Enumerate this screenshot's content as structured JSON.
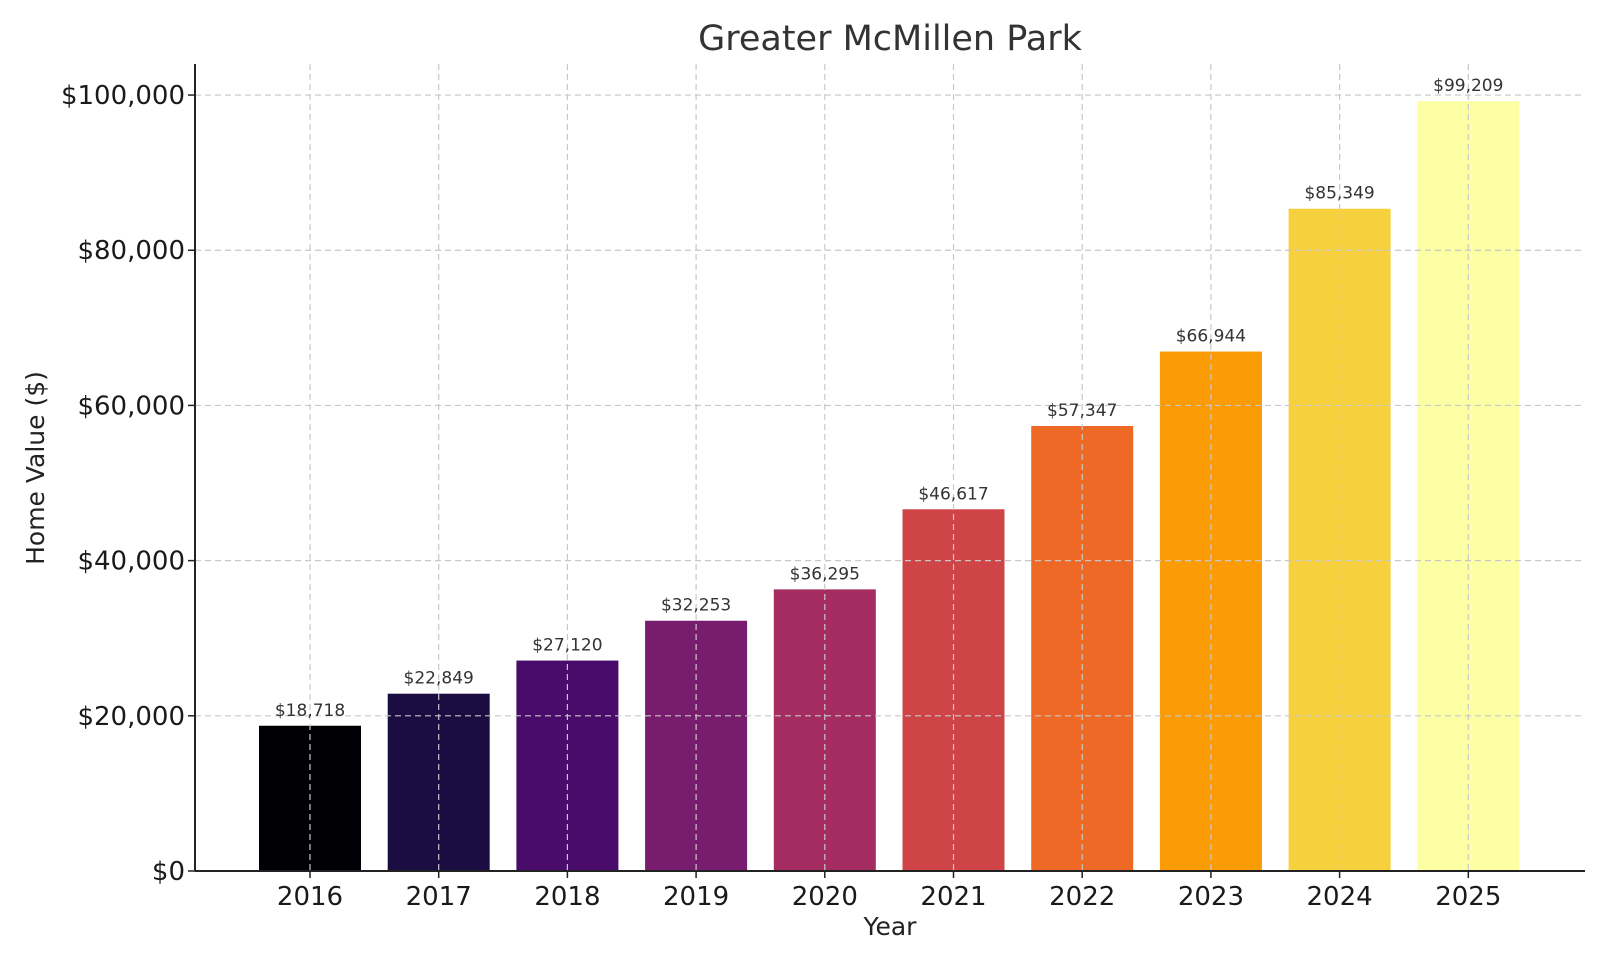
{
  "chart_data": {
    "type": "bar",
    "title": "Greater McMillen Park",
    "xlabel": "Year",
    "ylabel": "Home Value ($)",
    "categories": [
      "2016",
      "2017",
      "2018",
      "2019",
      "2020",
      "2021",
      "2022",
      "2023",
      "2024",
      "2025"
    ],
    "values": [
      18718,
      22849,
      27120,
      32253,
      36295,
      46617,
      57347,
      66944,
      85349,
      99209
    ],
    "value_labels": [
      "$18,718",
      "$22,849",
      "$27,120",
      "$32,253",
      "$36,295",
      "$46,617",
      "$57,347",
      "$66,944",
      "$85,349",
      "$99,209"
    ],
    "colors": [
      "#000004",
      "#1b0c41",
      "#4a0c6b",
      "#781c6d",
      "#a52c60",
      "#cf4446",
      "#ed6925",
      "#fb9b06",
      "#f7d13d",
      "#fcffa4"
    ],
    "ylim": [
      0,
      104000
    ],
    "yticks": [
      0,
      20000,
      40000,
      60000,
      80000,
      100000
    ],
    "ytick_labels": [
      "$0",
      "$20,000",
      "$40,000",
      "$60,000",
      "$80,000",
      "$100,000"
    ],
    "grid": true
  }
}
